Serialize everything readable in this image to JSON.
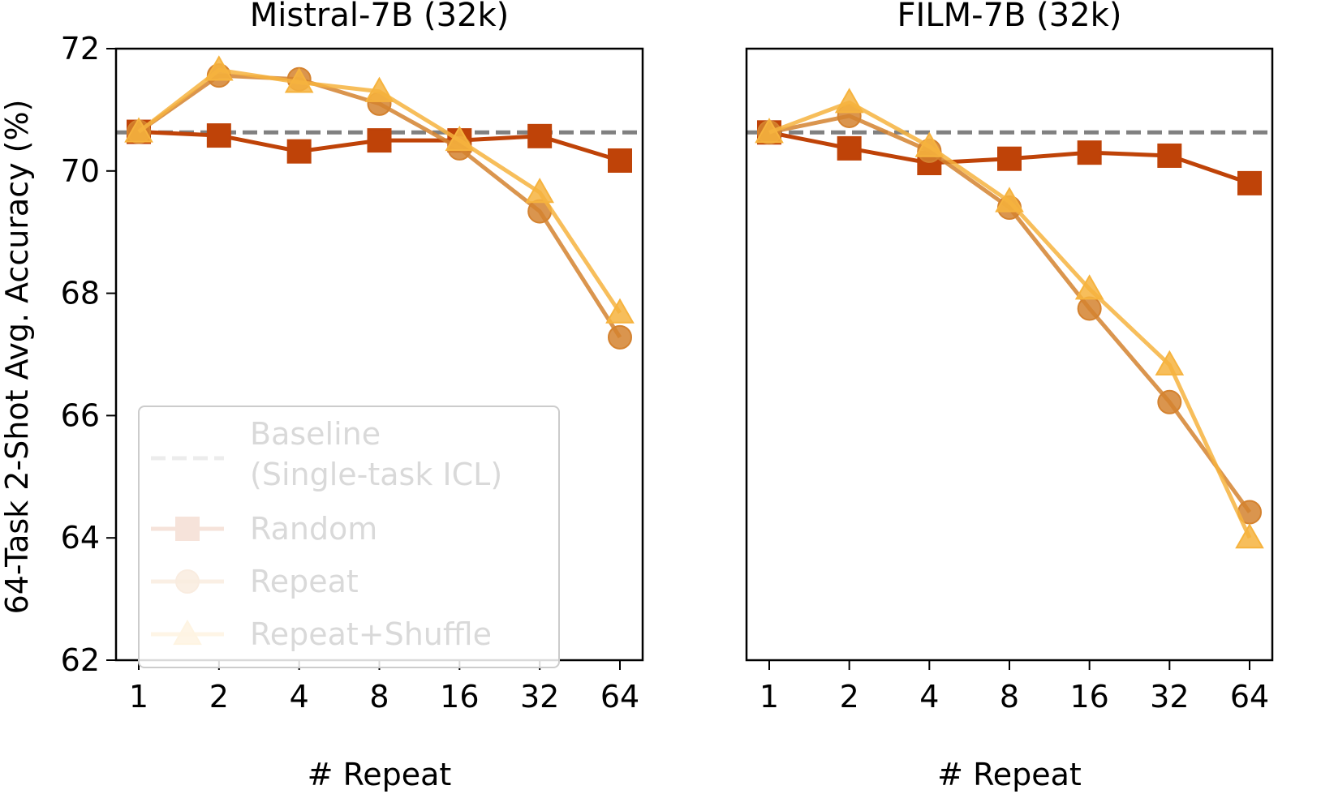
{
  "chart_data": [
    {
      "type": "line",
      "title": "Mistral-7B (32k)",
      "xlabel": "# Repeat",
      "ylabel": "64-Task 2-Shot Avg. Accuracy (%)",
      "x_scale": "log2",
      "x": [
        1,
        2,
        4,
        8,
        16,
        32,
        64
      ],
      "x_tick_labels": [
        "1",
        "2",
        "4",
        "8",
        "16",
        "32",
        "64"
      ],
      "ylim": [
        62,
        72
      ],
      "y_ticks": [
        62,
        64,
        66,
        68,
        70,
        72
      ],
      "baseline": {
        "name": "Baseline\n(Single-task ICL)",
        "value": 70.63,
        "color": "#808080",
        "style": "dashed"
      },
      "series": [
        {
          "name": "Random",
          "marker": "square",
          "color": "#BF4308",
          "values": [
            70.64,
            70.58,
            70.32,
            70.5,
            70.5,
            70.57,
            70.17
          ]
        },
        {
          "name": "Repeat",
          "marker": "circle",
          "color": "#D4822F",
          "values": [
            70.64,
            71.56,
            71.5,
            71.1,
            70.37,
            69.34,
            67.28
          ]
        },
        {
          "name": "Repeat+Shuffle",
          "marker": "triangle",
          "color": "#F6B33E",
          "values": [
            70.64,
            71.65,
            71.45,
            71.3,
            70.5,
            69.65,
            67.68
          ]
        }
      ],
      "legend": {
        "position": "lower-left"
      },
      "grid": false
    },
    {
      "type": "line",
      "title": "FILM-7B (32k)",
      "xlabel": "# Repeat",
      "x_scale": "log2",
      "x": [
        1,
        2,
        4,
        8,
        16,
        32,
        64
      ],
      "x_tick_labels": [
        "1",
        "2",
        "4",
        "8",
        "16",
        "32",
        "64"
      ],
      "ylim": [
        62,
        72
      ],
      "baseline": {
        "name": "Baseline\n(Single-task ICL)",
        "value": 70.63,
        "color": "#808080",
        "style": "dashed"
      },
      "series": [
        {
          "name": "Random",
          "marker": "square",
          "color": "#BF4308",
          "values": [
            70.63,
            70.37,
            70.13,
            70.2,
            70.3,
            70.25,
            69.8
          ]
        },
        {
          "name": "Repeat",
          "marker": "circle",
          "color": "#D4822F",
          "values": [
            70.63,
            70.9,
            70.33,
            69.4,
            67.75,
            66.22,
            64.42
          ]
        },
        {
          "name": "Repeat+Shuffle",
          "marker": "triangle",
          "color": "#F6B33E",
          "values": [
            70.63,
            71.12,
            70.4,
            69.5,
            68.07,
            66.83,
            64.0
          ]
        }
      ],
      "grid": false
    }
  ]
}
